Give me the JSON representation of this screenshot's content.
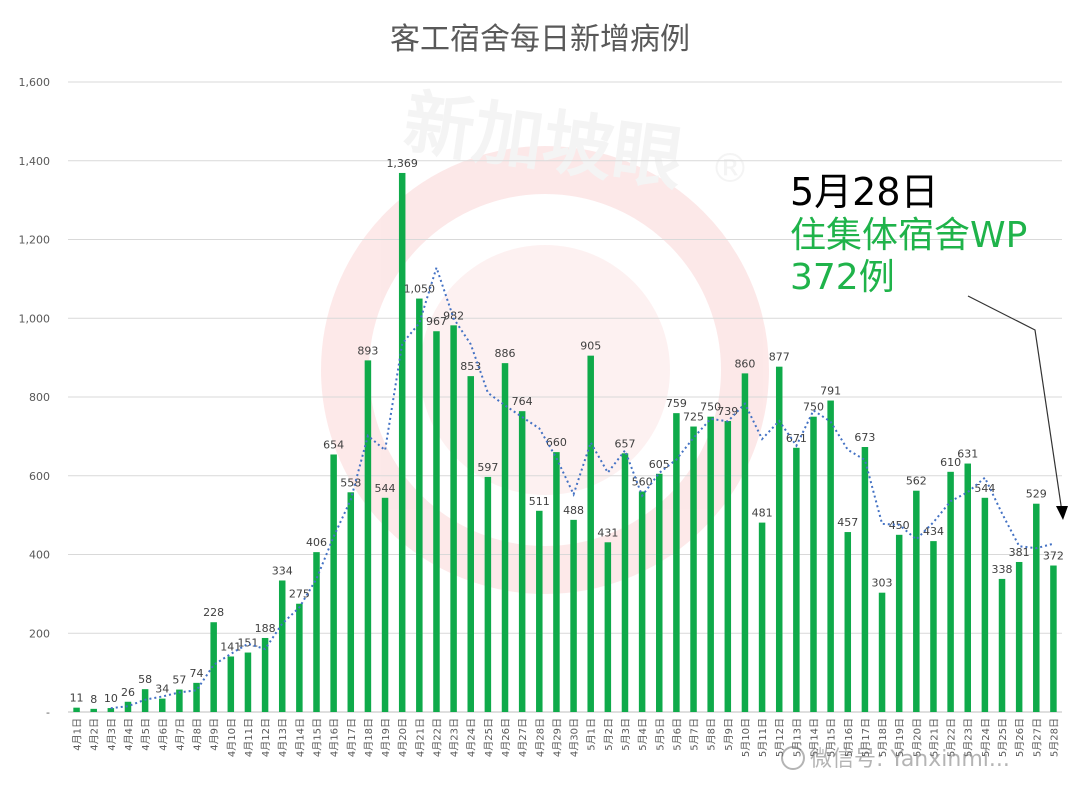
{
  "chart_data": {
    "type": "bar",
    "title": "客工宿舍每日新增病例",
    "categories": [
      "4月1日",
      "4月2日",
      "4月3日",
      "4月4日",
      "4月5日",
      "4月6日",
      "4月7日",
      "4月8日",
      "4月9日",
      "4月10日",
      "4月11日",
      "4月12日",
      "4月13日",
      "4月14日",
      "4月15日",
      "4月16日",
      "4月17日",
      "4月18日",
      "4月19日",
      "4月20日",
      "4月21日",
      "4月22日",
      "4月23日",
      "4月24日",
      "4月25日",
      "4月26日",
      "4月27日",
      "4月28日",
      "4月29日",
      "4月30日",
      "5月1日",
      "5月2日",
      "5月3日",
      "5月4日",
      "5月5日",
      "5月6日",
      "5月7日",
      "5月8日",
      "5月9日",
      "5月10日",
      "5月11日",
      "5月12日",
      "5月13日",
      "5月14日",
      "5月15日",
      "5月16日",
      "5月17日",
      "5月18日",
      "5月19日",
      "5月20日",
      "5月21日",
      "5月22日",
      "5月23日",
      "5月24日",
      "5月25日",
      "5月26日",
      "5月27日",
      "5月28日"
    ],
    "values": [
      11,
      8,
      10,
      26,
      58,
      34,
      57,
      74,
      228,
      141,
      151,
      188,
      334,
      275,
      406,
      654,
      558,
      893,
      544,
      1369,
      1050,
      967,
      982,
      853,
      597,
      886,
      764,
      511,
      660,
      488,
      905,
      431,
      657,
      560,
      605,
      759,
      725,
      750,
      739,
      860,
      481,
      877,
      671,
      750,
      791,
      457,
      673,
      303,
      450,
      562,
      434,
      610,
      631,
      544,
      338,
      381,
      529,
      372
    ],
    "series": [
      {
        "name": "",
        "type": "bar",
        "color": "#0faa4a"
      },
      {
        "name": "",
        "type": "moving-average-trendline",
        "period": 3,
        "color": "#4472c4",
        "style": "dotted"
      }
    ],
    "ylim": [
      0,
      1600
    ],
    "yticks": [
      "-",
      "200",
      "400",
      "600",
      "800",
      "1,000",
      "1,200",
      "1,400",
      "1,600"
    ],
    "grid": true,
    "data_labels": true
  },
  "annotation": {
    "date": "5月28日",
    "label": "住集体宿舍WP",
    "count": "372例"
  },
  "watermark": {
    "logo_text": "新加坡眼",
    "registered_mark": "®",
    "wechat_text": "微信号: Yanxinmi..."
  },
  "colors": {
    "bar": "#0faa4a",
    "trend": "#4472c4",
    "annotation_green": "#1fb34a",
    "grid": "#d9d9d9",
    "watermark": "#e8262b"
  }
}
